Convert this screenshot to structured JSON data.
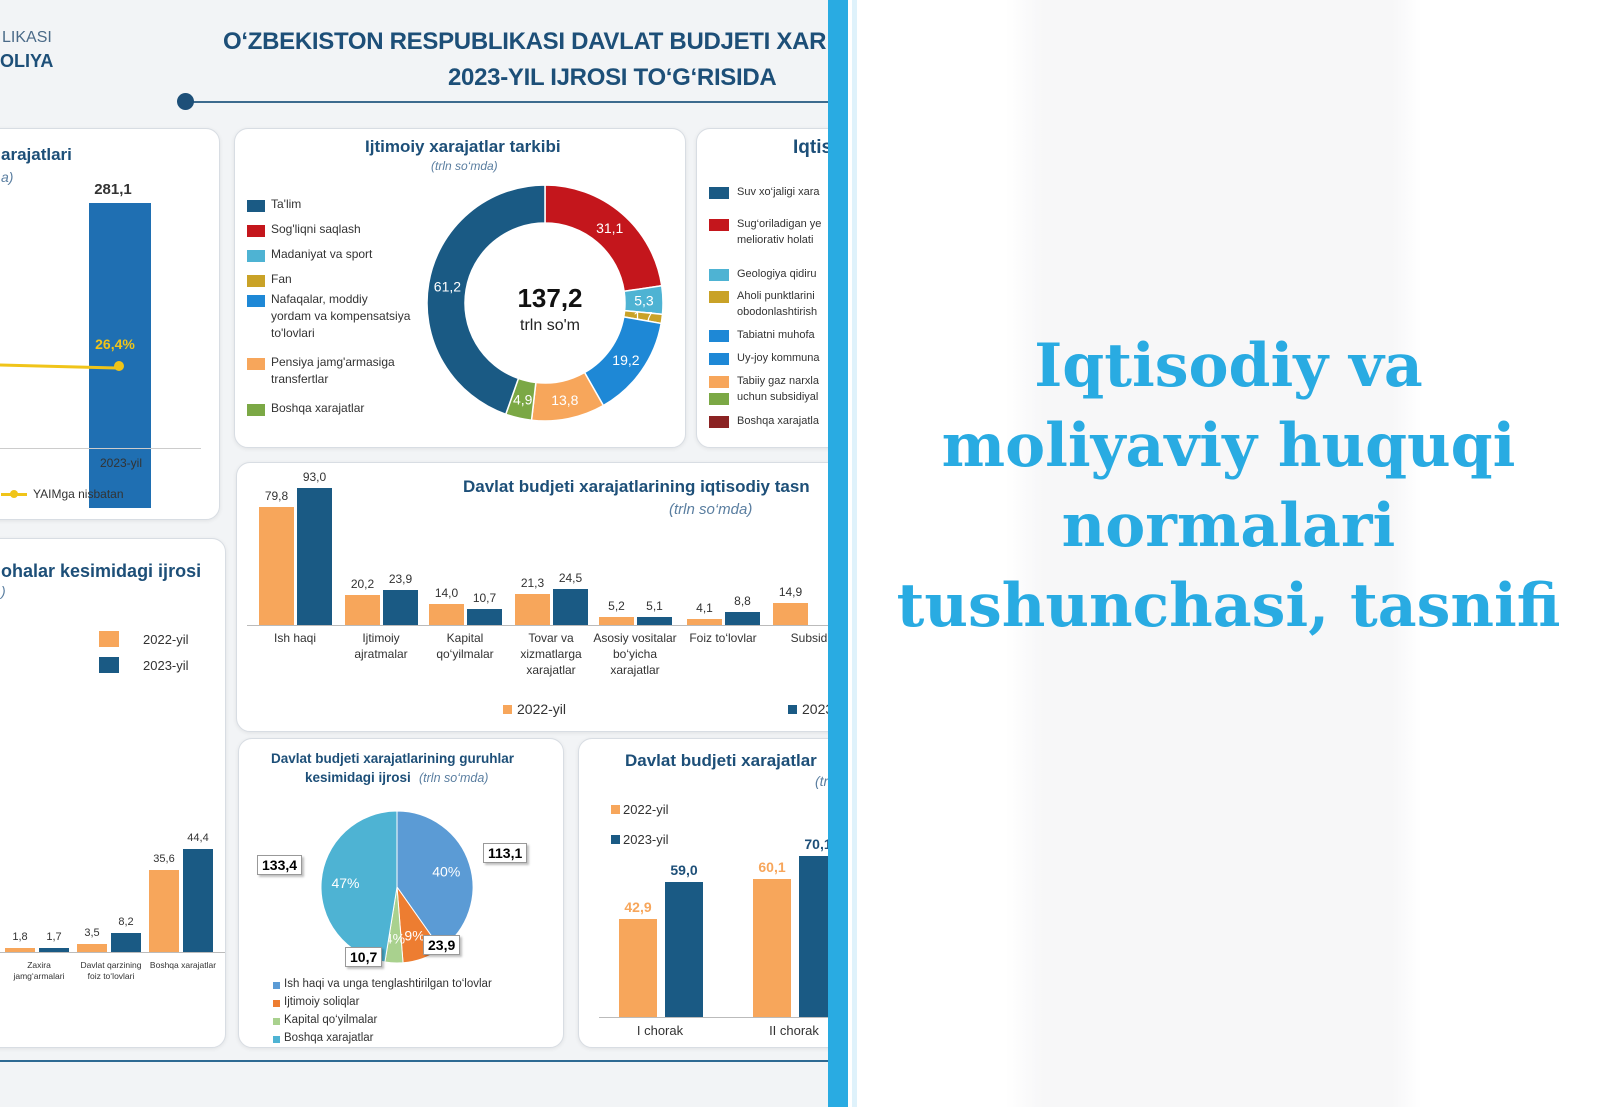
{
  "header": {
    "logo_line1": "LIKASI",
    "logo_line2": "OLIYA",
    "title_line1": "O‘ZBEKISTON RESPUBLIKASI DAVLAT BUDJETI XAR",
    "title_line2": "2023-YIL IJROSI TO‘G‘RISIDA"
  },
  "colors": {
    "navy": "#1a5a84",
    "orange": "#f7a65b",
    "red": "#c4161c",
    "sky": "#4eb3d3",
    "gold": "#c9a227",
    "blue": "#1e88d6",
    "green": "#7ba845",
    "dark": "#1d4f78",
    "accent": "#29abe2"
  },
  "spending_card": {
    "title": "arajatlari",
    "subtitle": "a)",
    "bar_value_label": "281,1",
    "bar_value": 281.1,
    "gdp_ratio_label": "26,4%",
    "year_label": "2023-yil",
    "legend": "YAIMga nisbatan"
  },
  "social_card": {
    "chart_data": {
      "type": "pie",
      "title": "Ijtimoiy xarajatlar tarkibi",
      "subtitle": "(trln so‘mda)",
      "center_value": "137,2",
      "center_unit": "trln so'm",
      "legend": [
        "Ta'lim",
        "Sog'liqni saqlash",
        "Madaniyat va sport",
        "Fan",
        "Nafaqalar, moddiy",
        "yordam va kompensatsiya",
        "to'lovlari",
        "Pensiya jamg'armasiga",
        "transfertlar",
        "Boshqa xarajatlar"
      ],
      "slices": [
        {
          "name": "Sog'liqni saqlash",
          "value": 31.1,
          "label": "31,1",
          "color": "#c4161c"
        },
        {
          "name": "Madaniyat va sport",
          "value": 5.3,
          "label": "5,3",
          "color": "#4eb3d3"
        },
        {
          "name": "Fan",
          "value": 1.7,
          "label": "1,7",
          "color": "#c9a227"
        },
        {
          "name": "Nafaqalar",
          "value": 19.2,
          "label": "19,2",
          "color": "#1e88d6"
        },
        {
          "name": "Pensiya jamg'armasiga transfertlar",
          "value": 13.8,
          "label": "13,8",
          "color": "#f7a65b"
        },
        {
          "name": "Boshqa xarajatlar",
          "value": 4.9,
          "label": "4,9",
          "color": "#7ba845"
        },
        {
          "name": "Ta'lim",
          "value": 61.2,
          "label": "61,2",
          "color": "#1a5a84"
        }
      ]
    }
  },
  "econ_side_card": {
    "title": "Iqtis",
    "items": [
      "Suv xo‘jaligi xara",
      "Sug‘oriladigan ye",
      "meliorativ holati",
      "Geologiya qidiru",
      "Aholi punktlarini",
      "obodonlashtirish",
      "Tabiatni muhofa",
      "Uy-joy kommuna",
      "Tabiiy gaz narxla",
      "uchun subsidiyal",
      "Boshqa xarajatla"
    ]
  },
  "econ_card": {
    "chart_data": {
      "type": "bar",
      "title": "Davlat budjeti xarajatlarining iqtisodiy tasn",
      "subtitle": "(trln so‘mda)",
      "categories": [
        [
          "Ish haqi"
        ],
        [
          "Ijtimoiy",
          "ajratmalar"
        ],
        [
          "Kapital",
          "qo‘yilmalar"
        ],
        [
          "Tovar va",
          "xizmatlarga",
          "xarajatlar"
        ],
        [
          "Asosiy vositalar",
          "bo‘yicha",
          "xarajatlar"
        ],
        [
          "Foiz to‘lovlar"
        ],
        [
          "Subsid"
        ]
      ],
      "series": [
        {
          "name": "2022-yil",
          "values": [
            79.8,
            20.2,
            14.0,
            21.3,
            5.2,
            4.1,
            14.9
          ],
          "labels": [
            "79,8",
            "20,2",
            "14,0",
            "21,3",
            "5,2",
            "4,1",
            "14,9"
          ]
        },
        {
          "name": "2023",
          "values": [
            93.0,
            23.9,
            10.7,
            24.5,
            5.1,
            8.8,
            null
          ],
          "labels": [
            "93,0",
            "23,9",
            "10,7",
            "24,5",
            "5,1",
            "8,8",
            ""
          ]
        }
      ],
      "ylim": [
        0,
        95
      ]
    }
  },
  "sector_card": {
    "title": "ohalar kesimidagi ijrosi",
    "subtitle": ")",
    "legend": [
      "2022-yil",
      "2023-yil"
    ],
    "chart_data": {
      "type": "bar",
      "categories": [
        [
          "Zaxira",
          "jamg‘armalari"
        ],
        [
          "Davlat qarzining",
          "foiz to‘lovlari"
        ],
        [
          "Boshqa xarajatlar"
        ]
      ],
      "series": [
        {
          "name": "2022-yil",
          "values": [
            1.8,
            3.5,
            35.6
          ],
          "labels": [
            "1,8",
            "3,5",
            "35,6"
          ]
        },
        {
          "name": "2023-yil",
          "values": [
            1.7,
            8.2,
            44.4
          ],
          "labels": [
            "1,7",
            "8,2",
            "44,4"
          ]
        }
      ],
      "ylim": [
        0,
        45
      ]
    }
  },
  "groups_card": {
    "title_line1": "Davlat budjeti xarajatlarining guruhlar",
    "title_line2": "kesimidagi ijrosi",
    "title_unit": "(trln so‘mda)",
    "legend": [
      "Ish haqi va unga tenglashtirilgan to‘lovlar",
      "Ijtimoiy soliqlar",
      "Kapital qo‘yilmalar",
      "Boshqa xarajatlar"
    ],
    "chart_data": {
      "type": "pie",
      "slices": [
        {
          "name": "Ish haqi va unga tenglashtirilgan to‘lovlar",
          "value": 113.1,
          "label": "113,1",
          "pct": "40%",
          "color": "#5b9bd5"
        },
        {
          "name": "Ijtimoiy soliqlar",
          "value": 23.9,
          "label": "23,9",
          "pct": "9%",
          "color": "#ed7d31"
        },
        {
          "name": "Kapital qo‘yilmalar",
          "value": 10.7,
          "label": "10,7",
          "pct": "4%",
          "color": "#a9d18e"
        },
        {
          "name": "Boshqa xarajatlar",
          "value": 133.4,
          "label": "133,4",
          "pct": "47%",
          "color": "#4eb3d3"
        }
      ]
    }
  },
  "quarter_card": {
    "title": "Davlat budjeti xarajatlar",
    "subtitle": "(tr",
    "legend": [
      "2022-yil",
      "2023-yil"
    ],
    "chart_data": {
      "type": "bar",
      "categories": [
        "I chorak",
        "II chorak"
      ],
      "series": [
        {
          "name": "2022-yil",
          "values": [
            42.9,
            60.1
          ],
          "labels": [
            "42,9",
            "60,1"
          ]
        },
        {
          "name": "2023-yil",
          "values": [
            59.0,
            70.1
          ],
          "labels": [
            "59,0",
            "70,1"
          ]
        }
      ],
      "ylim": [
        0,
        72
      ]
    }
  },
  "slide": {
    "heading_lines": [
      "Iqtisodiy va",
      "moliyaviy huquqi",
      "normalari",
      "tushunchasi, tasnifi"
    ]
  }
}
